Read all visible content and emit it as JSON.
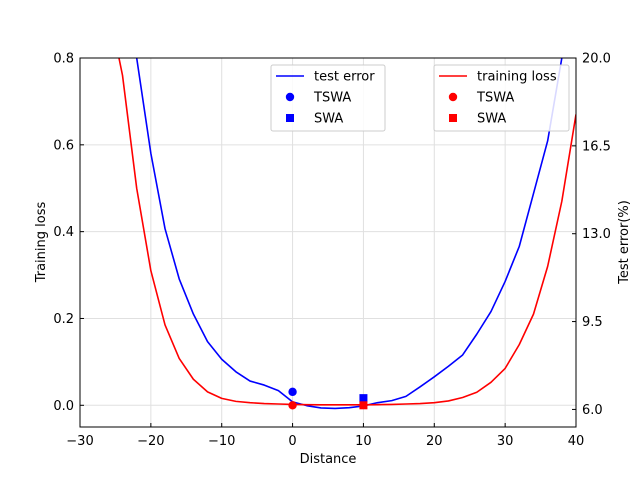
{
  "chart_data": {
    "type": "line",
    "xlabel": "Distance",
    "ylabel_left": "Training loss",
    "ylabel_right": "Test error(%)",
    "xlim": [
      -30,
      40
    ],
    "ylim_left": [
      -0.05,
      0.8
    ],
    "ylim_right": [
      5.3,
      20.0
    ],
    "xticks": [
      -30,
      -20,
      -10,
      0,
      10,
      20,
      30,
      40
    ],
    "xtick_labels": [
      "−30",
      "−20",
      "−10",
      "0",
      "10",
      "20",
      "30",
      "40"
    ],
    "yticks_left": [
      0.0,
      0.2,
      0.4,
      0.6,
      0.8
    ],
    "ytick_labels_left": [
      "0.0",
      "0.2",
      "0.4",
      "0.6",
      "0.8"
    ],
    "yticks_right": [
      6.0,
      9.5,
      13.0,
      16.5,
      20.0
    ],
    "ytick_labels_right": [
      "6.0",
      "9.5",
      "13.0",
      "16.5",
      "20.0"
    ],
    "grid": true,
    "series": [
      {
        "name": "test error",
        "axis": "right",
        "color": "#0000ff",
        "x": [
          -22,
          -20,
          -18,
          -16,
          -14,
          -12,
          -10,
          -8,
          -6,
          -4,
          -2,
          0,
          2,
          4,
          6,
          8,
          10,
          12,
          14,
          16,
          18,
          20,
          22,
          24,
          26,
          28,
          30,
          32,
          34,
          36,
          38
        ],
        "y": [
          20.0,
          16.2,
          13.2,
          11.2,
          9.8,
          8.7,
          8.0,
          7.5,
          7.13,
          6.97,
          6.75,
          6.3,
          6.15,
          6.06,
          6.04,
          6.07,
          6.14,
          6.27,
          6.35,
          6.52,
          6.9,
          7.3,
          7.72,
          8.17,
          9.0,
          9.9,
          11.1,
          12.5,
          14.6,
          16.7,
          20.0
        ]
      },
      {
        "name": "training loss",
        "axis": "left",
        "color": "#ff0000",
        "x": [
          -24.5,
          -24,
          -22,
          -20,
          -18,
          -16,
          -14,
          -12,
          -10,
          -8,
          -6,
          -4,
          -2,
          0,
          2,
          4,
          6,
          8,
          10,
          12,
          14,
          16,
          18,
          20,
          22,
          24,
          26,
          28,
          30,
          32,
          34,
          36,
          38,
          40
        ],
        "y": [
          0.8,
          0.76,
          0.5,
          0.31,
          0.185,
          0.108,
          0.06,
          0.031,
          0.016,
          0.009,
          0.006,
          0.004,
          0.003,
          0.002,
          0.0015,
          0.001,
          0.001,
          0.001,
          0.0012,
          0.0015,
          0.002,
          0.003,
          0.004,
          0.006,
          0.01,
          0.018,
          0.03,
          0.053,
          0.085,
          0.14,
          0.21,
          0.32,
          0.47,
          0.67
        ]
      }
    ],
    "markers": [
      {
        "name": "TSWA",
        "axis": "right",
        "shape": "circle",
        "color": "#0000ff",
        "x": 0,
        "y": 6.7
      },
      {
        "name": "SWA",
        "axis": "right",
        "shape": "square",
        "color": "#0000ff",
        "x": 10,
        "y": 6.45
      },
      {
        "name": "TSWA",
        "axis": "left",
        "shape": "circle",
        "color": "#ff0000",
        "x": 0,
        "y": 0.0
      },
      {
        "name": "SWA",
        "axis": "left",
        "shape": "square",
        "color": "#ff0000",
        "x": 10,
        "y": 0.0
      }
    ],
    "legends": [
      {
        "placement": "upper-center",
        "entries": [
          {
            "label": "test error",
            "kind": "line",
            "color": "#0000ff"
          },
          {
            "label": "TSWA",
            "kind": "circle",
            "color": "#0000ff"
          },
          {
            "label": "SWA",
            "kind": "square",
            "color": "#0000ff"
          }
        ]
      },
      {
        "placement": "upper-right",
        "entries": [
          {
            "label": "training loss",
            "kind": "line",
            "color": "#ff0000"
          },
          {
            "label": "TSWA",
            "kind": "circle",
            "color": "#ff0000"
          },
          {
            "label": "SWA",
            "kind": "square",
            "color": "#ff0000"
          }
        ]
      }
    ]
  }
}
